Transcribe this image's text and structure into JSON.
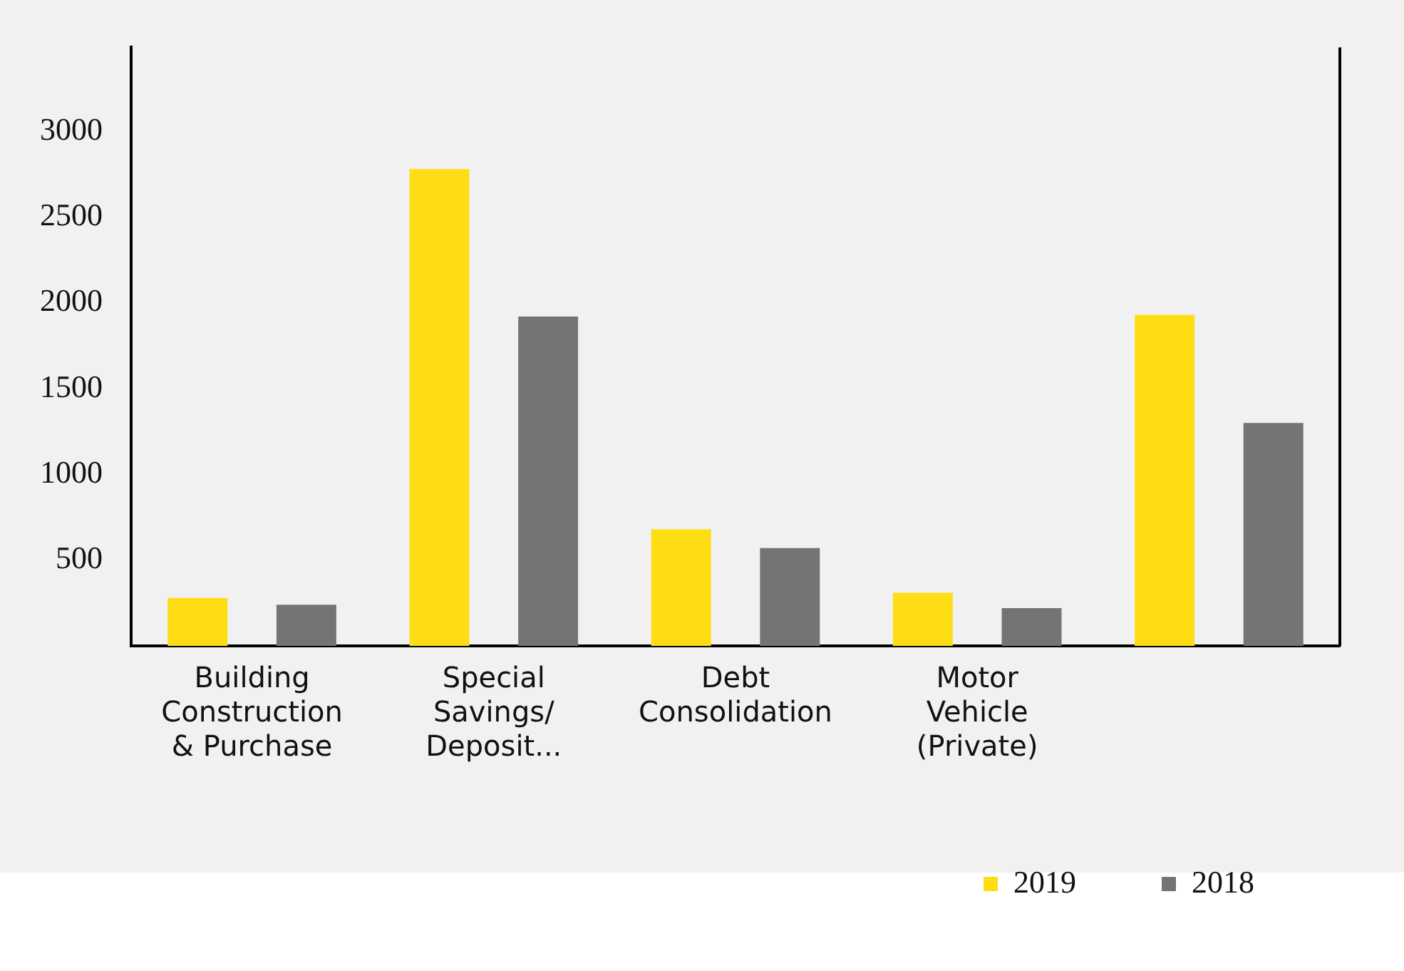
{
  "chart_data": {
    "type": "bar",
    "categories": [
      "Building Construction & Purchase",
      "Special Savings/ Deposit...",
      "Debt Consolidation",
      "Motor Vehicle (Private)",
      null
    ],
    "series": [
      {
        "name": "2019",
        "color": "#ffdd15",
        "values": [
          280,
          2780,
          680,
          310,
          1930
        ]
      },
      {
        "name": "2018",
        "color": "#747476",
        "values": [
          240,
          1920,
          570,
          220,
          1300
        ]
      }
    ],
    "ylim": [
      0,
      3490
    ],
    "yticks": [
      500,
      1000,
      1500,
      2000,
      2500,
      3000
    ],
    "grid": false,
    "legend": "bottom right"
  }
}
